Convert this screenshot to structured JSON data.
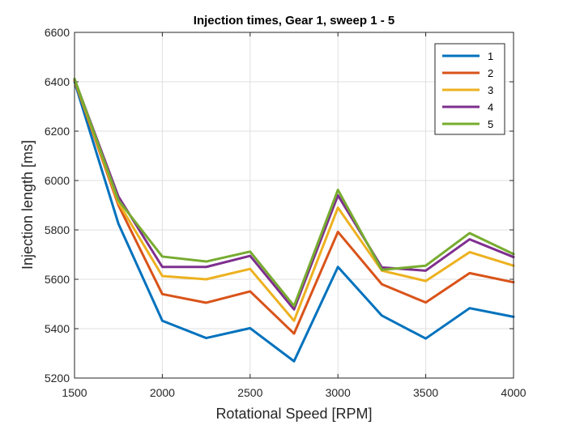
{
  "chart_data": {
    "type": "line",
    "title": "Injection times, Gear 1, sweep 1 - 5",
    "xlabel": "Rotational Speed [RPM]",
    "ylabel": "Injection length [ms]",
    "xlim": [
      1500,
      4000
    ],
    "ylim": [
      5200,
      6600
    ],
    "xticks": [
      1500,
      2000,
      2500,
      3000,
      3500,
      4000
    ],
    "yticks": [
      5200,
      5400,
      5600,
      5800,
      6000,
      6200,
      6400,
      6600
    ],
    "grid": true,
    "legend_position": "top-right",
    "x": [
      1500,
      1750,
      2000,
      2250,
      2500,
      2750,
      3000,
      3250,
      3500,
      3750,
      4000
    ],
    "series": [
      {
        "name": "1",
        "color": "#0072BD",
        "values": [
          6400,
          5825,
          5432,
          5362,
          5402,
          5268,
          5650,
          5453,
          5360,
          5483,
          5448
        ]
      },
      {
        "name": "2",
        "color": "#D95319",
        "values": [
          6405,
          5900,
          5540,
          5505,
          5551,
          5380,
          5792,
          5580,
          5506,
          5625,
          5588
        ]
      },
      {
        "name": "3",
        "color": "#EDB120",
        "values": [
          6408,
          5910,
          5613,
          5600,
          5642,
          5432,
          5890,
          5635,
          5593,
          5710,
          5655
        ]
      },
      {
        "name": "4",
        "color": "#7E2F8E",
        "values": [
          6410,
          5935,
          5650,
          5650,
          5695,
          5478,
          5940,
          5648,
          5635,
          5762,
          5690
        ]
      },
      {
        "name": "5",
        "color": "#77AC30",
        "values": [
          6412,
          5920,
          5692,
          5672,
          5712,
          5492,
          5962,
          5638,
          5655,
          5787,
          5702
        ]
      }
    ]
  }
}
